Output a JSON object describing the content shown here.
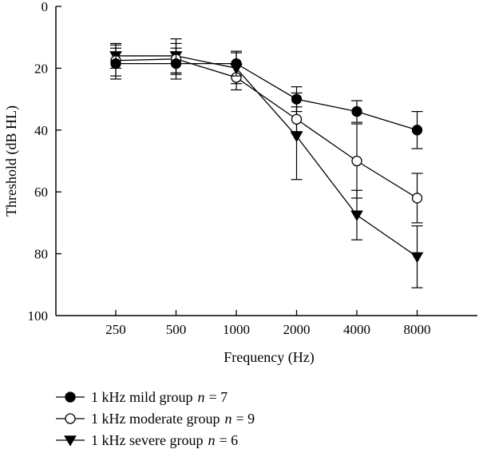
{
  "chart_data": {
    "type": "line",
    "categories": [
      "250",
      "500",
      "1000",
      "2000",
      "4000",
      "8000"
    ],
    "xlabel": "Frequency (Hz)",
    "ylabel": "Threshold (dB HL)",
    "ylim": [
      0,
      100
    ],
    "y_inverted": true,
    "yticks": [
      "0",
      "20",
      "40",
      "60",
      "80",
      "100"
    ],
    "grid": false,
    "legend_position": "below",
    "series": [
      {
        "name": "1 kHz mild group",
        "n_label": "n",
        "n_value": "= 7",
        "marker": "filled-circle",
        "values": [
          18.5,
          18.5,
          18.5,
          30,
          34,
          40
        ],
        "errors": [
          5,
          5,
          4,
          4,
          3.5,
          6
        ]
      },
      {
        "name": "1 kHz moderate group",
        "n_label": "n",
        "n_value": "= 9",
        "marker": "open-circle",
        "values": [
          17.5,
          17,
          23,
          36.5,
          50,
          62
        ],
        "errors": [
          5,
          5,
          4,
          4,
          12,
          8
        ]
      },
      {
        "name": "1 kHz severe group",
        "n_label": "n",
        "n_value": "= 6",
        "marker": "filled-triangle-down",
        "values": [
          16,
          16,
          20,
          42,
          67.5,
          81
        ],
        "errors": [
          4,
          5.5,
          5,
          14,
          8,
          10
        ]
      }
    ]
  }
}
